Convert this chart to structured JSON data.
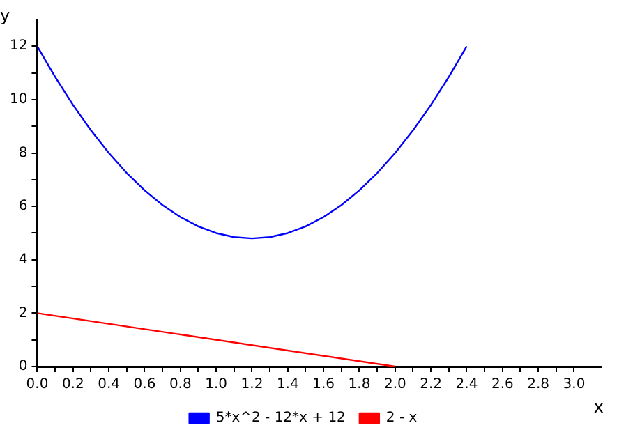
{
  "chart_data": {
    "type": "line",
    "xlabel": "x",
    "ylabel": "y",
    "xlim": [
      0,
      3.15
    ],
    "ylim": [
      0,
      13
    ],
    "xticks": [
      {
        "value": 0,
        "label": "0.0"
      },
      {
        "value": 0.1,
        "label": null
      },
      {
        "value": 0.2,
        "label": "0.2"
      },
      {
        "value": 0.3,
        "label": null
      },
      {
        "value": 0.4,
        "label": "0.4"
      },
      {
        "value": 0.5,
        "label": null
      },
      {
        "value": 0.6,
        "label": "0.6"
      },
      {
        "value": 0.7,
        "label": null
      },
      {
        "value": 0.8,
        "label": "0.8"
      },
      {
        "value": 0.9,
        "label": null
      },
      {
        "value": 1,
        "label": "1.0"
      },
      {
        "value": 1.1,
        "label": null
      },
      {
        "value": 1.2,
        "label": "1.2"
      },
      {
        "value": 1.3,
        "label": null
      },
      {
        "value": 1.4,
        "label": "1.4"
      },
      {
        "value": 1.5,
        "label": null
      },
      {
        "value": 1.6,
        "label": "1.6"
      },
      {
        "value": 1.7,
        "label": null
      },
      {
        "value": 1.8,
        "label": "1.8"
      },
      {
        "value": 1.9,
        "label": null
      },
      {
        "value": 2,
        "label": "2.0"
      },
      {
        "value": 2.1,
        "label": null
      },
      {
        "value": 2.2,
        "label": "2.2"
      },
      {
        "value": 2.3,
        "label": null
      },
      {
        "value": 2.4,
        "label": "2.4"
      },
      {
        "value": 2.5,
        "label": null
      },
      {
        "value": 2.6,
        "label": "2.6"
      },
      {
        "value": 2.7,
        "label": null
      },
      {
        "value": 2.8,
        "label": "2.8"
      },
      {
        "value": 2.9,
        "label": null
      },
      {
        "value": 3,
        "label": "3.0"
      }
    ],
    "yticks": [
      0,
      {
        "value": 1,
        "label": null
      },
      2,
      {
        "value": 3,
        "label": null
      },
      4,
      {
        "value": 5,
        "label": null
      },
      6,
      {
        "value": 7,
        "label": null
      },
      8,
      {
        "value": 9,
        "label": null
      },
      10,
      {
        "value": 11,
        "label": null
      },
      12
    ],
    "grid": false,
    "legend": "bottom",
    "marker": "none",
    "line_style": "solid",
    "series": [
      {
        "name": "5*x^2 - 12*x + 12",
        "color": "#0000ff",
        "x": [
          0,
          0.1,
          0.2,
          0.3,
          0.4,
          0.5,
          0.6,
          0.7,
          0.8,
          0.9,
          1,
          1.1,
          1.2,
          1.3,
          1.4,
          1.5,
          1.6,
          1.7,
          1.8,
          1.9,
          2,
          2.1,
          2.2,
          2.3,
          2.4
        ],
        "values": [
          12,
          10.85,
          9.8,
          8.85,
          8,
          7.25,
          6.6,
          6.05,
          5.6,
          5.25,
          5,
          4.85,
          4.8,
          4.85,
          5,
          5.25,
          5.6,
          6.05,
          6.6,
          7.25,
          8,
          8.85,
          9.8,
          10.85,
          12
        ]
      },
      {
        "name": "2 - x",
        "color": "#ff0000",
        "x": [
          0,
          2
        ],
        "values": [
          2,
          0
        ]
      }
    ]
  }
}
